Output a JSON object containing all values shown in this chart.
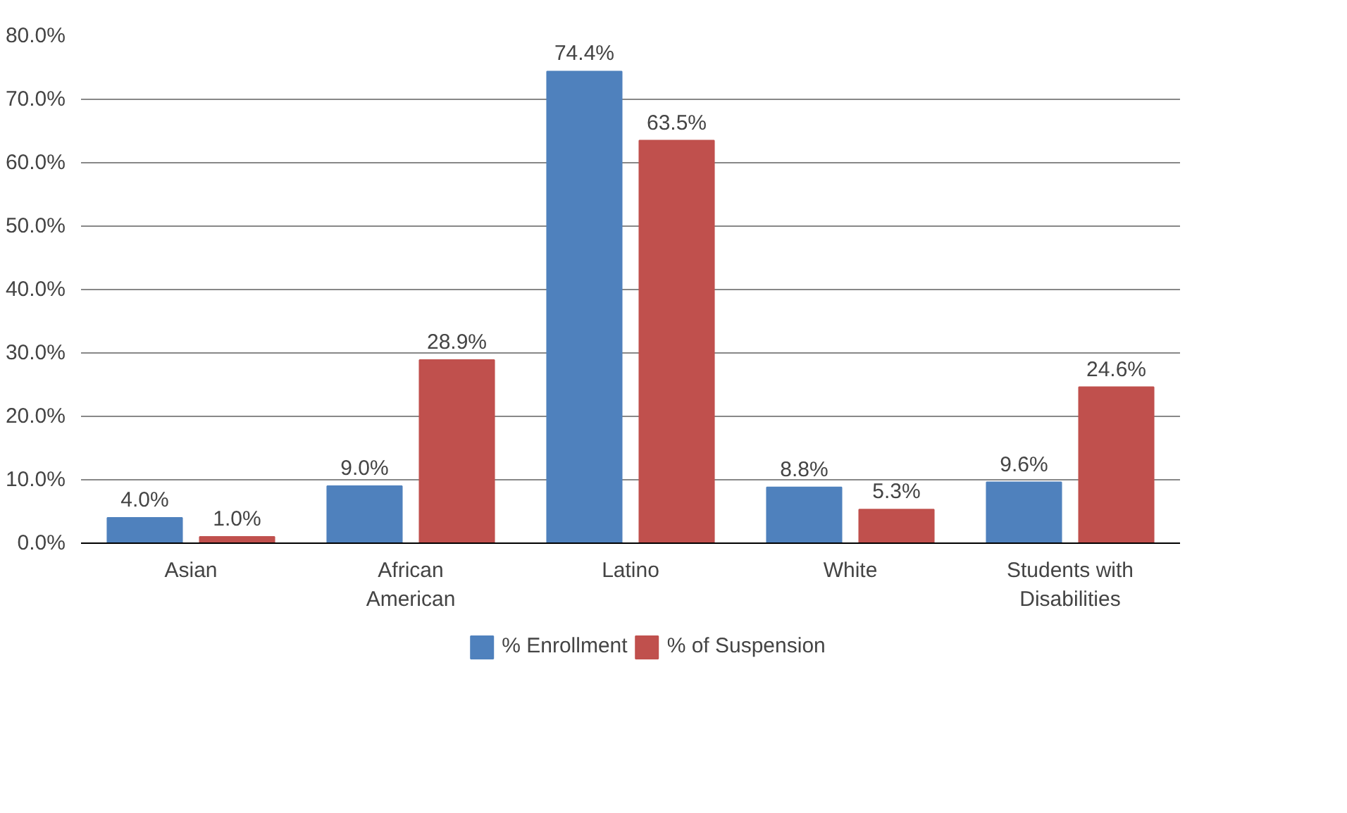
{
  "chart_data": {
    "type": "bar",
    "categories": [
      "Asian",
      "African\nAmerican",
      "Latino",
      "White",
      "Students with\nDisabilities"
    ],
    "series": [
      {
        "name": "% Enrollment",
        "color": "#4f81bd",
        "values": [
          4.0,
          9.0,
          74.4,
          8.8,
          9.6
        ],
        "value_labels": [
          "4.0%",
          "9.0%",
          "74.4%",
          "8.8%",
          "9.6%"
        ]
      },
      {
        "name": "% of Suspension",
        "color": "#c0504d",
        "values": [
          1.0,
          28.9,
          63.5,
          5.3,
          24.6
        ],
        "value_labels": [
          "1.0%",
          "28.9%",
          "63.5%",
          "5.3%",
          "24.6%"
        ]
      }
    ],
    "ylim": [
      0,
      80
    ],
    "yticks": [
      {
        "value": 0,
        "label": "0.0%"
      },
      {
        "value": 10,
        "label": "10.0%"
      },
      {
        "value": 20,
        "label": "20.0%"
      },
      {
        "value": 30,
        "label": "30.0%"
      },
      {
        "value": 40,
        "label": "40.0%"
      },
      {
        "value": 50,
        "label": "50.0%"
      },
      {
        "value": 60,
        "label": "60.0%"
      },
      {
        "value": 70,
        "label": "70.0%"
      },
      {
        "value": 80,
        "label": "80.0%"
      }
    ],
    "grid": "y",
    "legend": "bottom"
  }
}
